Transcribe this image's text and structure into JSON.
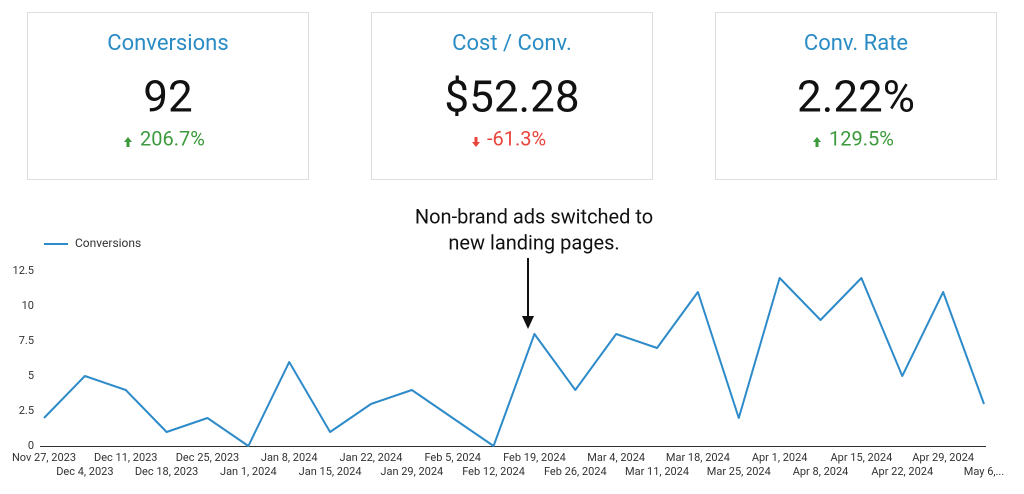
{
  "scorecards": [
    {
      "title": "Conversions",
      "value": "92",
      "change": "206.7%"
    },
    {
      "title": "Cost / Conv.",
      "value": "$52.28",
      "change": "-61.3%"
    },
    {
      "title": "Conv. Rate",
      "value": "2.22%",
      "change": "129.5%"
    }
  ],
  "chart_data": {
    "type": "line",
    "annotation": [
      "Non-brand ads switched to",
      "new landing pages."
    ],
    "categories": [
      "Nov 27, 2023",
      "Dec 4, 2023",
      "Dec 11, 2023",
      "Dec 18, 2023",
      "Dec 25, 2023",
      "Jan 1, 2024",
      "Jan 8, 2024",
      "Jan 15, 2024",
      "Jan 22, 2024",
      "Jan 29, 2024",
      "Feb 5, 2024",
      "Feb 12, 2024",
      "Feb 19, 2024",
      "Feb 26, 2024",
      "Mar 4, 2024",
      "Mar 11, 2024",
      "Mar 18, 2024",
      "Mar 25, 2024",
      "Apr 1, 2024",
      "Apr 8, 2024",
      "Apr 15, 2024",
      "Apr 22, 2024",
      "Apr 29, 2024",
      "May 6,..."
    ],
    "series": [
      {
        "name": "Conversions",
        "color": "#2e8bc9",
        "values": [
          2,
          5,
          4,
          1,
          2,
          0,
          6,
          1,
          3,
          4,
          2,
          0,
          8,
          4,
          8,
          7,
          11,
          2,
          12,
          9,
          12,
          5,
          11,
          3
        ]
      }
    ],
    "ylim": [
      0,
      12.5
    ],
    "yticks": [
      0,
      2.5,
      5,
      7.5,
      10,
      12.5
    ],
    "grid": false,
    "legend": "top-left"
  }
}
